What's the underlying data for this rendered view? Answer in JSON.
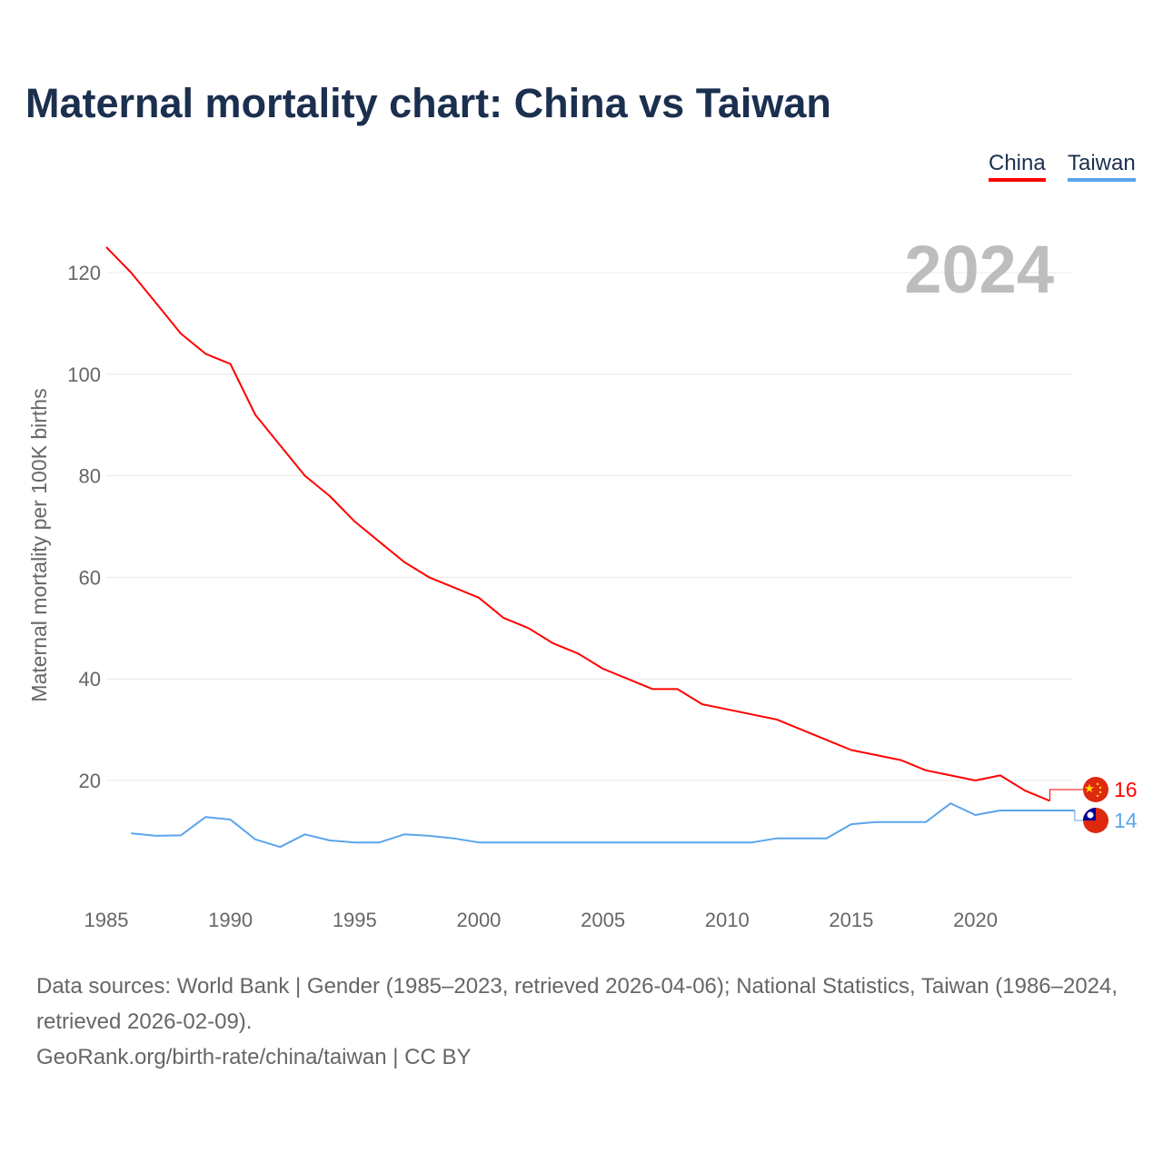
{
  "chart_data": {
    "type": "line",
    "title": "Maternal mortality chart: China vs Taiwan",
    "ylabel": "Maternal mortality per 100K births",
    "xlabel": "",
    "xlim": [
      1985,
      2024
    ],
    "ylim": [
      0,
      125
    ],
    "x_ticks": [
      1985,
      1990,
      1995,
      2000,
      2005,
      2010,
      2015,
      2020
    ],
    "y_ticks": [
      20,
      40,
      60,
      80,
      100,
      120
    ],
    "grid": true,
    "year_watermark": "2024",
    "legend_placement": "top-right",
    "series": [
      {
        "name": "China",
        "color": "#ff0000",
        "end_label": "16",
        "x": [
          1985,
          1986,
          1987,
          1988,
          1989,
          1990,
          1991,
          1992,
          1993,
          1994,
          1995,
          1996,
          1997,
          1998,
          1999,
          2000,
          2001,
          2002,
          2003,
          2004,
          2005,
          2006,
          2007,
          2008,
          2009,
          2010,
          2011,
          2012,
          2013,
          2014,
          2015,
          2016,
          2017,
          2018,
          2019,
          2020,
          2021,
          2022,
          2023
        ],
        "values": [
          125,
          120,
          114,
          108,
          104,
          102,
          92,
          86,
          80,
          76,
          71,
          67,
          63,
          60,
          58,
          56,
          52,
          50,
          47,
          45,
          42,
          40,
          38,
          38,
          35,
          34,
          33,
          32,
          30,
          28,
          26,
          25,
          24,
          22,
          21,
          20,
          21,
          18,
          16
        ]
      },
      {
        "name": "Taiwan",
        "color": "#5aa5ea",
        "end_label": "14",
        "x": [
          1986,
          1987,
          1988,
          1989,
          1990,
          1991,
          1992,
          1993,
          1994,
          1995,
          1996,
          1997,
          1998,
          1999,
          2000,
          2001,
          2002,
          2003,
          2004,
          2005,
          2006,
          2007,
          2008,
          2009,
          2010,
          2011,
          2012,
          2013,
          2014,
          2015,
          2016,
          2017,
          2018,
          2019,
          2020,
          2021,
          2022,
          2023,
          2024
        ],
        "values": [
          9.6,
          9.1,
          9.2,
          12.8,
          12.3,
          8.4,
          6.9,
          9.4,
          8.2,
          7.8,
          7.8,
          9.4,
          9.1,
          8.6,
          7.8,
          7.8,
          7.8,
          7.8,
          7.8,
          7.8,
          7.8,
          7.8,
          7.8,
          7.8,
          7.8,
          7.8,
          8.6,
          8.6,
          8.6,
          11.4,
          11.8,
          11.8,
          11.8,
          15.5,
          13.2,
          14.1,
          14.1,
          14.1,
          14.1
        ]
      }
    ]
  },
  "legend": {
    "china": "China",
    "taiwan": "Taiwan"
  },
  "footer": {
    "sources": "Data sources: World Bank | Gender (1985–2023, retrieved 2026-04-06); National Statistics, Taiwan (1986–2024, retrieved 2026-02-09).",
    "credit": "GeoRank.org/birth-rate/china/taiwan | CC BY"
  }
}
